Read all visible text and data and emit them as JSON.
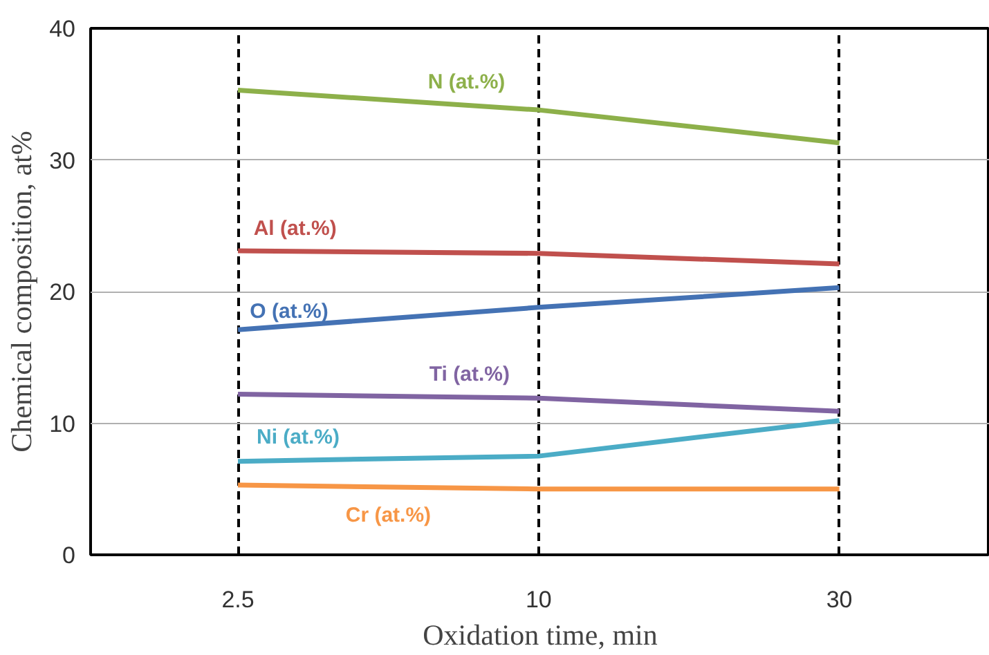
{
  "chart_data": {
    "type": "line",
    "xlabel": "Oxidation time, min",
    "ylabel": "Chemical composition, at%",
    "categories": [
      "2.5",
      "10",
      "30"
    ],
    "series": [
      {
        "name": "N (at.%)",
        "color": "#8db04a",
        "values": [
          35.3,
          33.8,
          31.3
        ]
      },
      {
        "name": "Al (at.%)",
        "color": "#c0504d",
        "values": [
          23.1,
          22.9,
          22.1
        ]
      },
      {
        "name": "O (at.%)",
        "color": "#4472b4",
        "values": [
          17.1,
          18.8,
          20.3
        ]
      },
      {
        "name": "Ti (at.%)",
        "color": "#8064a2",
        "values": [
          12.2,
          11.9,
          10.9
        ]
      },
      {
        "name": "Ni (at.%)",
        "color": "#4bacc6",
        "values": [
          7.1,
          7.5,
          10.2
        ]
      },
      {
        "name": "Cr (at.%)",
        "color": "#f79646",
        "values": [
          5.3,
          5.0,
          5.0
        ]
      }
    ],
    "ylim": [
      0,
      40
    ],
    "yticks": [
      0,
      10,
      20,
      30,
      40
    ],
    "grid": true,
    "marker": "none",
    "line_style": "solid"
  }
}
